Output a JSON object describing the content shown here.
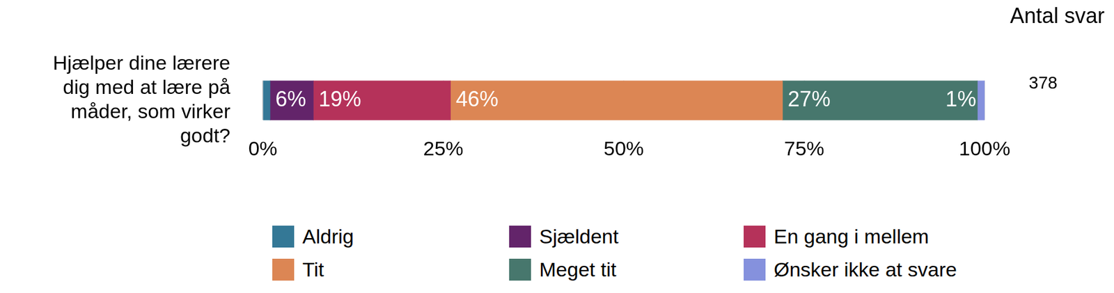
{
  "chart_data": {
    "type": "bar",
    "orientation": "horizontal",
    "stacked": true,
    "grid": true,
    "data_labels": true,
    "categories": [
      "Hjælper dine lærere dig med at lære på måder, som virker godt?"
    ],
    "series": [
      {
        "name": "Aldrig",
        "color": "#347896",
        "values": [
          1
        ],
        "data_labels": false
      },
      {
        "name": "Sjældent",
        "color": "#63246a",
        "values": [
          6
        ],
        "value_labels": [
          "6%"
        ]
      },
      {
        "name": "En gang i mellem",
        "color": "#b5325a",
        "values": [
          19
        ],
        "value_labels": [
          "19%"
        ]
      },
      {
        "name": "Tit",
        "color": "#dc8654",
        "values": [
          46
        ],
        "value_labels": [
          "46%"
        ]
      },
      {
        "name": "Meget tit",
        "color": "#47776d",
        "values": [
          27
        ],
        "value_labels": [
          "27%"
        ]
      },
      {
        "name": "Ønsker ikke at svare",
        "color": "#8591dd",
        "values": [
          1
        ],
        "value_labels": [
          "1%"
        ]
      }
    ],
    "xlim": [
      0,
      100
    ],
    "xticks": [
      {
        "value": 0,
        "label": "0%"
      },
      {
        "value": 25,
        "label": "25%"
      },
      {
        "value": 50,
        "label": "50%"
      },
      {
        "value": 75,
        "label": "75%"
      },
      {
        "value": 100,
        "label": "100%"
      }
    ],
    "count_title": "Antal svar",
    "counts": [
      378
    ]
  }
}
